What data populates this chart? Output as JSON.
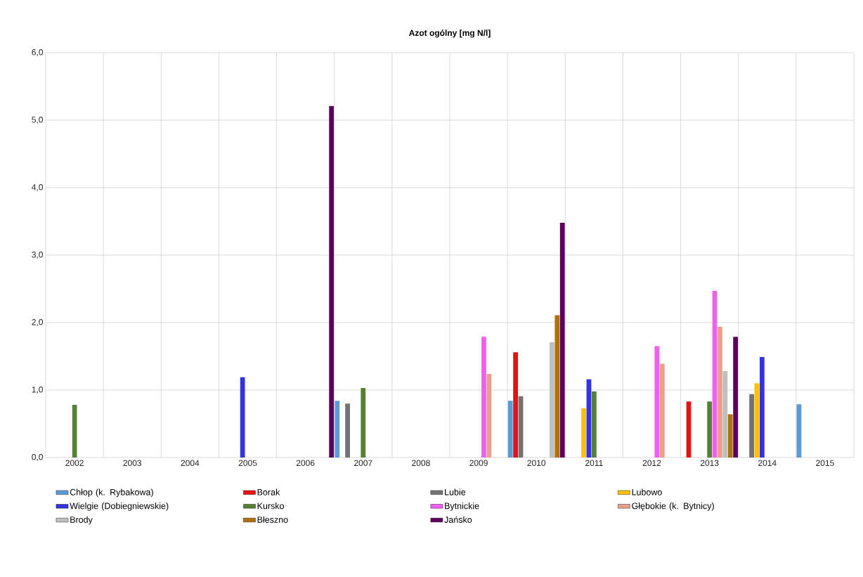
{
  "chart_data": {
    "type": "bar",
    "title": "Azot ogólny  [mg N/l]",
    "categories": [
      "2002",
      "2003",
      "2004",
      "2005",
      "2006",
      "2007",
      "2008",
      "2009",
      "2010",
      "2011",
      "2012",
      "2013",
      "2014",
      "2015"
    ],
    "series": [
      {
        "name": "Chłop (k. Rybakowa)",
        "color": "#5b9bd5",
        "values": [
          null,
          null,
          null,
          null,
          null,
          0.84,
          null,
          null,
          0.84,
          null,
          null,
          null,
          null,
          0.79
        ]
      },
      {
        "name": "Borak",
        "color": "#e81010",
        "values": [
          null,
          null,
          null,
          null,
          null,
          null,
          null,
          null,
          1.56,
          null,
          null,
          0.83,
          null,
          null
        ]
      },
      {
        "name": "Lubie",
        "color": "#737373",
        "values": [
          null,
          null,
          null,
          null,
          null,
          0.8,
          null,
          null,
          0.91,
          null,
          null,
          null,
          0.94,
          null
        ]
      },
      {
        "name": "Lubowo",
        "color": "#ffc000",
        "values": [
          null,
          null,
          null,
          null,
          null,
          null,
          null,
          null,
          null,
          0.73,
          null,
          null,
          1.1,
          null
        ]
      },
      {
        "name": "Wielgie (Dobiegniewskie)",
        "color": "#3333e6",
        "values": [
          null,
          null,
          null,
          1.19,
          null,
          null,
          null,
          null,
          null,
          1.16,
          null,
          null,
          1.49,
          null
        ]
      },
      {
        "name": "Kursko",
        "color": "#548235",
        "values": [
          0.78,
          null,
          null,
          null,
          null,
          1.03,
          null,
          null,
          null,
          0.98,
          null,
          0.83,
          null,
          null
        ]
      },
      {
        "name": "Bytnickie",
        "color": "#f060f0",
        "values": [
          null,
          null,
          null,
          null,
          null,
          null,
          null,
          1.79,
          null,
          null,
          1.65,
          2.47,
          null,
          null
        ]
      },
      {
        "name": "Głębokie (k. Bytnicy)",
        "color": "#e8a08a",
        "values": [
          null,
          null,
          null,
          null,
          null,
          null,
          null,
          1.24,
          null,
          null,
          1.39,
          1.94,
          null,
          null
        ]
      },
      {
        "name": "Brody",
        "color": "#bfbfbf",
        "values": [
          null,
          null,
          null,
          null,
          null,
          null,
          null,
          null,
          1.71,
          null,
          null,
          1.28,
          null,
          null
        ]
      },
      {
        "name": "Błeszno",
        "color": "#b07010",
        "values": [
          null,
          null,
          null,
          null,
          null,
          null,
          null,
          null,
          2.11,
          null,
          null,
          0.64,
          null,
          null
        ]
      },
      {
        "name": "Jańsko",
        "color": "#5c0060",
        "values": [
          null,
          null,
          null,
          null,
          5.21,
          null,
          null,
          null,
          3.48,
          null,
          null,
          1.79,
          null,
          null
        ]
      }
    ],
    "ylim": [
      0,
      6
    ],
    "yticks": [
      {
        "value": 0,
        "label": "0,0"
      },
      {
        "value": 1,
        "label": "1,0"
      },
      {
        "value": 2,
        "label": "2,0"
      },
      {
        "value": 3,
        "label": "3,0"
      },
      {
        "value": 4,
        "label": "4,0"
      },
      {
        "value": 5,
        "label": "5,0"
      },
      {
        "value": 6,
        "label": "6,0"
      }
    ],
    "grid": true,
    "legend": "bottom"
  }
}
